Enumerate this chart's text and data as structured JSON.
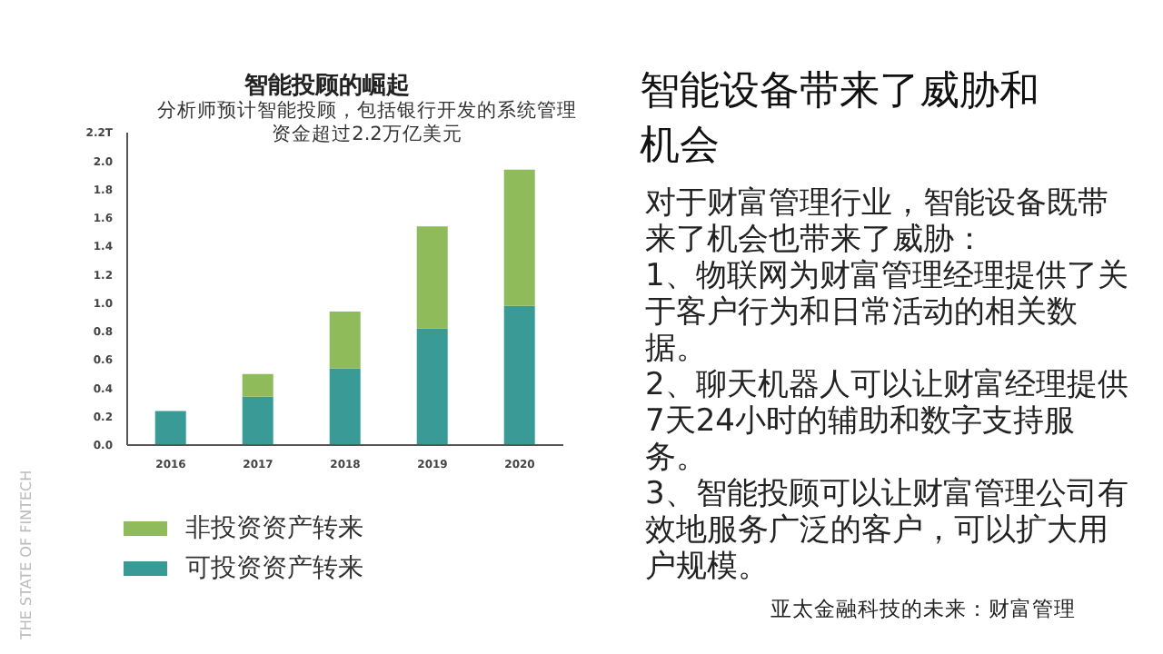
{
  "chart_data": {
    "type": "bar",
    "title": "智能投顾的崛起",
    "subtitle": "分析师预计智能投顾，包括银行开发的系统管理资金超过2.2万亿美元",
    "categories": [
      "2016",
      "2017",
      "2018",
      "2019",
      "2020"
    ],
    "series": [
      {
        "name": "可投资资产转来",
        "color": "#3a9a95",
        "values": [
          0.24,
          0.34,
          0.54,
          0.82,
          0.98
        ]
      },
      {
        "name": "非投资资产转来",
        "color": "#8fbb5a",
        "values": [
          0,
          0.16,
          0.4,
          0.72,
          0.96
        ]
      }
    ],
    "stacked": true,
    "ylim": [
      0,
      2.2
    ],
    "yticks": [
      {
        "value": 0,
        "label": "0.0"
      },
      0.2,
      0.4,
      0.6,
      0.8,
      {
        "value": 1,
        "label": "1.0"
      },
      1.2,
      1.4,
      1.6,
      1.8,
      {
        "value": 2,
        "label": "2.0"
      },
      {
        "value": 2.2,
        "label": "2.2T"
      }
    ],
    "grid": false,
    "legend": "bottom",
    "annotations": [
      "智能设备带来了威胁和机会",
      "对于财富管理行业，智能设备既带来了机会也带来了威胁：",
      "1、物联网为财富管理经理提供了关于客户行为和日常活动的相关数据。",
      "2、聊天机器人可以让财富经理提供7天24小时的辅助和数字支持服务。",
      "3、智能投顾可以让财富管理公司有效地服务广泛的客户，可以扩大用户规模。",
      "亚太金融科技的未来：财富管理",
      "THE STATE OF FINTECH"
    ]
  }
}
